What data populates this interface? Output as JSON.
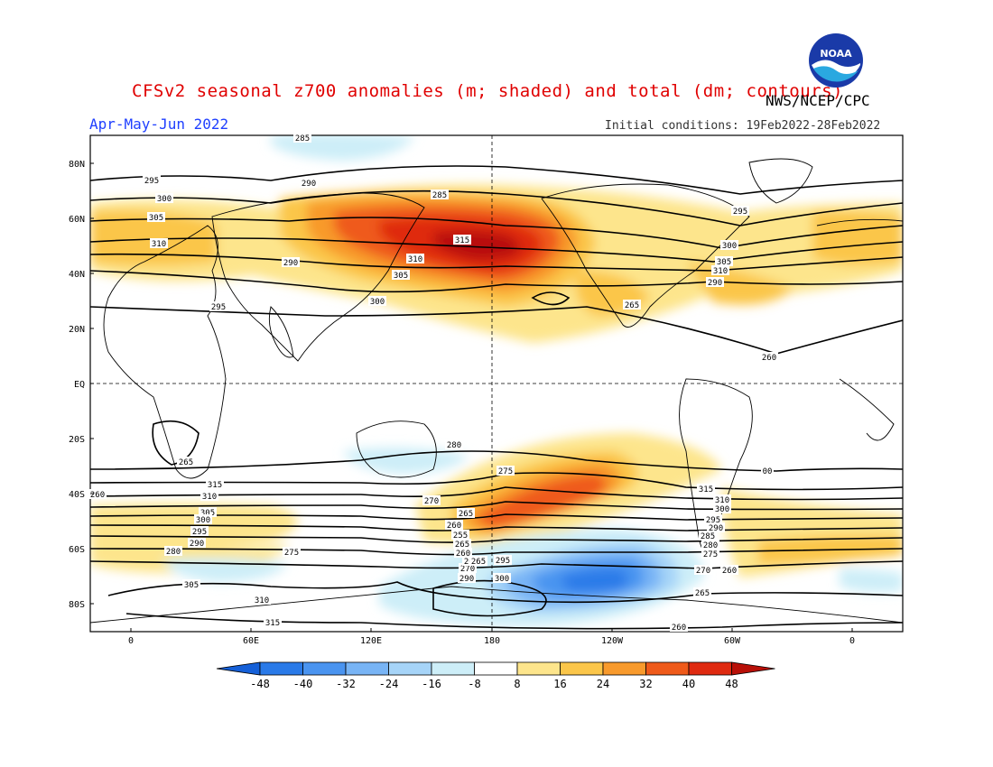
{
  "header": {
    "title": "CFSv2 seasonal z700 anomalies (m; shaded) and total (dm; contours)",
    "agency": "NWS/NCEP/CPC",
    "season": "Apr-May-Jun 2022",
    "initial_conditions": "Initial conditions: 19Feb2022-28Feb2022",
    "logo_text": "NOAA"
  },
  "map": {
    "lat_labels": [
      "80N",
      "60N",
      "40N",
      "20N",
      "EQ",
      "20S",
      "40S",
      "60S",
      "80S"
    ],
    "lon_labels": [
      "0",
      "60E",
      "120E",
      "180",
      "120W",
      "60W",
      "0"
    ],
    "contour_labels": [
      "285",
      "290",
      "295",
      "300",
      "305",
      "310",
      "315",
      "310",
      "305",
      "300",
      "295",
      "290",
      "285",
      "280",
      "275",
      "270",
      "265",
      "260",
      "255",
      "265",
      "260",
      "290",
      "295",
      "300",
      "305",
      "310",
      "315",
      "295",
      "300",
      "305",
      "310",
      "290",
      "265",
      "260",
      "265",
      "315",
      "310",
      "305",
      "300",
      "295",
      "290",
      "280",
      "275",
      "270",
      "265",
      "260",
      "00",
      "315",
      "310",
      "300",
      "295",
      "290",
      "285",
      "280",
      "275",
      "270",
      "265",
      "260",
      "265",
      "260"
    ],
    "colors": {
      "land_line": "#000000",
      "contour": "#000000"
    }
  },
  "colorbar": {
    "labels": [
      "-48",
      "-40",
      "-32",
      "-24",
      "-16",
      "-8",
      "8",
      "16",
      "24",
      "32",
      "40",
      "48"
    ],
    "colors": [
      "#1560d8",
      "#2a7ae8",
      "#4a94f0",
      "#78b4f5",
      "#a6d4f8",
      "#cdeef8",
      "#ffffff",
      "#fde58c",
      "#fbc64a",
      "#f89a2c",
      "#ef5a1a",
      "#df2a10",
      "#b81008"
    ]
  }
}
